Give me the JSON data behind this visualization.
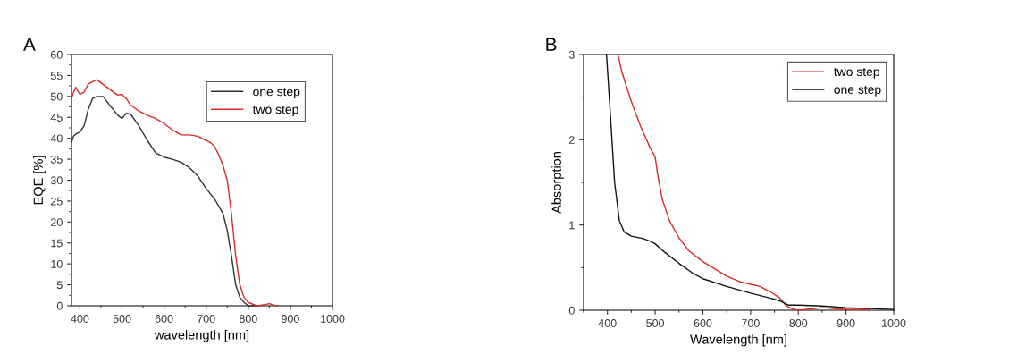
{
  "chart_data": [
    {
      "type": "line",
      "annotations": [
        "A"
      ],
      "xlabel": "wavelength [nm]",
      "ylabel": "EQE [%]",
      "xlim": [
        380,
        1000
      ],
      "xticks": [
        400,
        500,
        600,
        700,
        800,
        900,
        1000
      ],
      "ylim": [
        0,
        60
      ],
      "yticks": [
        0,
        5,
        10,
        15,
        20,
        25,
        30,
        35,
        40,
        45,
        50,
        55,
        60
      ],
      "legend": "top right",
      "grid": false,
      "series": [
        {
          "name": "one step",
          "color": "#333333",
          "x": [
            380,
            385,
            390,
            400,
            410,
            420,
            430,
            440,
            455,
            470,
            490,
            500,
            510,
            520,
            540,
            560,
            580,
            600,
            620,
            640,
            660,
            680,
            700,
            720,
            740,
            750,
            760,
            770,
            780,
            790,
            800,
            820
          ],
          "values": [
            39,
            40.5,
            41,
            41.5,
            43,
            47,
            49.5,
            50,
            50,
            48,
            45.5,
            44.7,
            46,
            45.8,
            43,
            39.5,
            36.5,
            35.5,
            35,
            34.3,
            33,
            31,
            28,
            25.5,
            22,
            18,
            12,
            5,
            2,
            0.8,
            0,
            0
          ]
        },
        {
          "name": "two step",
          "color": "#d42a2a",
          "x": [
            380,
            385,
            390,
            400,
            410,
            420,
            440,
            460,
            480,
            490,
            500,
            510,
            520,
            540,
            560,
            580,
            600,
            620,
            640,
            660,
            680,
            700,
            710,
            720,
            730,
            740,
            750,
            760,
            770,
            780,
            790,
            800,
            820,
            840,
            850,
            860,
            870
          ],
          "values": [
            49.5,
            51,
            52.2,
            50.5,
            51,
            53,
            54,
            52.5,
            51,
            50.3,
            50.5,
            49.5,
            48,
            46.5,
            45.5,
            44.7,
            43.5,
            42,
            40.8,
            40.8,
            40.5,
            39.5,
            39,
            38,
            36,
            33.5,
            30,
            22,
            12,
            5,
            2,
            0.8,
            0,
            0.3,
            0.5,
            0.2,
            0
          ]
        }
      ]
    },
    {
      "type": "line",
      "annotations": [
        "B"
      ],
      "xlabel": "Wavelength [nm]",
      "ylabel": "Absorption",
      "xlim": [
        350,
        1000
      ],
      "xticks": [
        400,
        500,
        600,
        700,
        800,
        900,
        1000
      ],
      "ylim": [
        0,
        3
      ],
      "yticks": [
        0,
        1,
        2,
        3
      ],
      "legend": "top right",
      "grid": false,
      "series": [
        {
          "name": "two step",
          "color": "#d42a2a",
          "x": [
            422,
            430,
            450,
            470,
            490,
            500,
            505,
            515,
            530,
            550,
            570,
            600,
            650,
            680,
            720,
            740,
            760,
            775,
            790,
            800,
            850,
            900,
            950
          ],
          "values": [
            3,
            2.8,
            2.45,
            2.15,
            1.9,
            1.8,
            1.6,
            1.3,
            1.05,
            0.85,
            0.7,
            0.57,
            0.4,
            0.33,
            0.28,
            0.22,
            0.15,
            0.05,
            0.01,
            0,
            0.03,
            0.01,
            0.01
          ]
        },
        {
          "name": "one step",
          "color": "#111111",
          "x": [
            398,
            405,
            415,
            425,
            435,
            450,
            475,
            490,
            500,
            520,
            550,
            580,
            600,
            650,
            700,
            750,
            765,
            780,
            800,
            850,
            900,
            950,
            1000
          ],
          "values": [
            3,
            2.4,
            1.5,
            1.05,
            0.92,
            0.87,
            0.84,
            0.81,
            0.78,
            0.68,
            0.55,
            0.43,
            0.37,
            0.28,
            0.2,
            0.13,
            0.1,
            0.06,
            0.06,
            0.05,
            0.03,
            0.02,
            0.01
          ]
        }
      ]
    }
  ]
}
